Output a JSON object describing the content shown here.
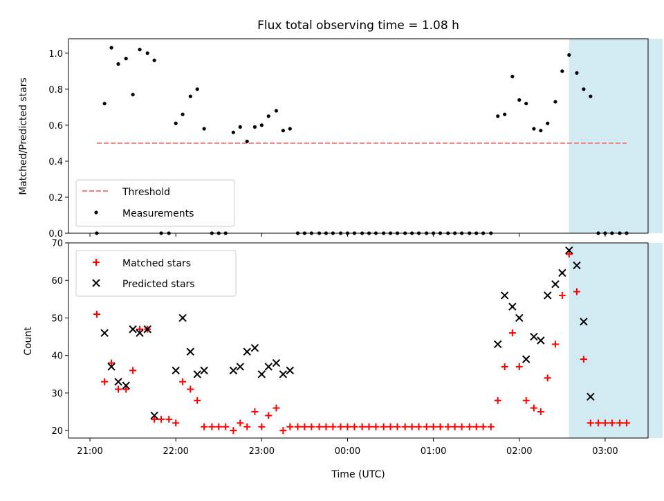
{
  "chart_data": [
    {
      "type": "scatter",
      "title": "Flux total observing time = 1.08 h",
      "ylabel": "Matched/Predicted stars",
      "xlabel": "",
      "ylim": [
        0,
        1.08
      ],
      "yticks": [
        0.0,
        0.2,
        0.4,
        0.6,
        0.8,
        1.0
      ],
      "ytick_labels": [
        "0.0",
        "0.2",
        "0.4",
        "0.6",
        "0.8",
        "1.0"
      ],
      "highlight_span": {
        "x": [
          26.58,
          27.67
        ],
        "color": "#add8e6"
      },
      "threshold": {
        "name": "Threshold",
        "y": 0.5,
        "x": [
          21.08,
          27.25
        ],
        "color": "#f08080"
      },
      "legend": {
        "loc": "lower-left",
        "items": [
          "Threshold",
          "Measurements"
        ]
      },
      "series": [
        {
          "name": "Measurements",
          "color": "#000000",
          "x": [
            21.08,
            21.17,
            21.25,
            21.33,
            21.42,
            21.5,
            21.58,
            21.67,
            21.75,
            21.83,
            21.92,
            22.0,
            22.08,
            22.17,
            22.25,
            22.33,
            22.42,
            22.5,
            22.58,
            22.67,
            22.75,
            22.83,
            22.92,
            23.0,
            23.08,
            23.17,
            23.25,
            23.33,
            23.42,
            23.5,
            23.58,
            23.67,
            23.75,
            23.83,
            23.92,
            24.0,
            24.08,
            24.17,
            24.25,
            24.33,
            24.42,
            24.5,
            24.58,
            24.67,
            24.75,
            24.83,
            24.92,
            25.0,
            25.08,
            25.17,
            25.25,
            25.33,
            25.42,
            25.5,
            25.58,
            25.67,
            25.75,
            25.83,
            25.92,
            26.0,
            26.08,
            26.17,
            26.25,
            26.33,
            26.42,
            26.5,
            26.58,
            26.67,
            26.75,
            26.83,
            26.92,
            27.0,
            27.08,
            27.17,
            27.25
          ],
          "y": [
            0.0,
            0.72,
            1.03,
            0.94,
            0.97,
            0.77,
            1.02,
            1.0,
            0.96,
            0.0,
            0.0,
            0.61,
            0.66,
            0.76,
            0.8,
            0.58,
            0.0,
            0.0,
            0.0,
            0.56,
            0.59,
            0.51,
            0.59,
            0.6,
            0.65,
            0.68,
            0.57,
            0.58,
            0.0,
            0.0,
            0.0,
            0.0,
            0.0,
            0.0,
            0.0,
            0.0,
            0.0,
            0.0,
            0.0,
            0.0,
            0.0,
            0.0,
            0.0,
            0.0,
            0.0,
            0.0,
            0.0,
            0.0,
            0.0,
            0.0,
            0.0,
            0.0,
            0.0,
            0.0,
            0.0,
            0.0,
            0.65,
            0.66,
            0.87,
            0.74,
            0.72,
            0.58,
            0.57,
            0.61,
            0.73,
            0.9,
            0.99,
            0.89,
            0.8,
            0.76,
            0.0,
            0.0,
            0.0,
            0.0,
            0.0
          ]
        }
      ]
    },
    {
      "type": "scatter",
      "title": "",
      "xlabel": "Time (UTC)",
      "ylabel": "Count",
      "ylim": [
        18,
        70
      ],
      "yticks": [
        20,
        30,
        40,
        50,
        60,
        70
      ],
      "ytick_labels": [
        "20",
        "30",
        "40",
        "50",
        "60",
        "70"
      ],
      "xlim": [
        20.75,
        27.5
      ],
      "xticks": [
        21,
        22,
        23,
        24,
        25,
        26,
        27
      ],
      "xtick_labels": [
        "21:00",
        "22:00",
        "23:00",
        "00:00",
        "01:00",
        "02:00",
        "03:00"
      ],
      "highlight_span": {
        "x": [
          26.58,
          27.67
        ],
        "color": "#add8e6"
      },
      "legend": {
        "loc": "upper-left",
        "items": [
          "Matched stars",
          "Predicted stars"
        ]
      },
      "series": [
        {
          "name": "Matched stars",
          "marker": "plus",
          "color": "#ff0000",
          "x": [
            21.08,
            21.17,
            21.25,
            21.33,
            21.42,
            21.5,
            21.58,
            21.67,
            21.75,
            21.83,
            21.92,
            22.0,
            22.08,
            22.17,
            22.25,
            22.33,
            22.42,
            22.5,
            22.58,
            22.67,
            22.75,
            22.83,
            22.92,
            23.0,
            23.08,
            23.17,
            23.25,
            23.33,
            23.42,
            23.5,
            23.58,
            23.67,
            23.75,
            23.83,
            23.92,
            24.0,
            24.08,
            24.17,
            24.25,
            24.33,
            24.42,
            24.5,
            24.58,
            24.67,
            24.75,
            24.83,
            24.92,
            25.0,
            25.08,
            25.17,
            25.25,
            25.33,
            25.42,
            25.5,
            25.58,
            25.67,
            25.75,
            25.83,
            25.92,
            26.0,
            26.08,
            26.17,
            26.25,
            26.33,
            26.42,
            26.5,
            26.58,
            26.67,
            26.75,
            26.83,
            26.92,
            27.0,
            27.08,
            27.17,
            27.25
          ],
          "y": [
            51,
            33,
            38,
            31,
            31,
            36,
            47,
            47,
            23,
            23,
            23,
            22,
            33,
            31,
            28,
            21,
            21,
            21,
            21,
            20,
            22,
            21,
            25,
            21,
            24,
            26,
            20,
            21,
            21,
            21,
            21,
            21,
            21,
            21,
            21,
            21,
            21,
            21,
            21,
            21,
            21,
            21,
            21,
            21,
            21,
            21,
            21,
            21,
            21,
            21,
            21,
            21,
            21,
            21,
            21,
            21,
            28,
            37,
            46,
            37,
            28,
            26,
            25,
            34,
            43,
            56,
            67,
            57,
            39,
            22,
            22,
            22,
            22,
            22,
            22
          ]
        },
        {
          "name": "Predicted stars",
          "marker": "x",
          "color": "#000000",
          "x": [
            21.17,
            21.25,
            21.33,
            21.42,
            21.5,
            21.58,
            21.67,
            21.75,
            22.0,
            22.08,
            22.17,
            22.25,
            22.33,
            22.67,
            22.75,
            22.83,
            22.92,
            23.0,
            23.08,
            23.17,
            23.25,
            23.33,
            25.75,
            25.83,
            25.92,
            26.0,
            26.08,
            26.17,
            26.25,
            26.33,
            26.42,
            26.5,
            26.58,
            26.67,
            26.75,
            26.83
          ],
          "y": [
            46,
            37,
            33,
            32,
            47,
            46,
            47,
            24,
            36,
            50,
            41,
            35,
            36,
            36,
            37,
            41,
            42,
            35,
            37,
            38,
            35,
            36,
            43,
            56,
            53,
            50,
            39,
            45,
            44,
            56,
            59,
            62,
            68,
            64,
            49,
            29
          ]
        }
      ]
    }
  ]
}
